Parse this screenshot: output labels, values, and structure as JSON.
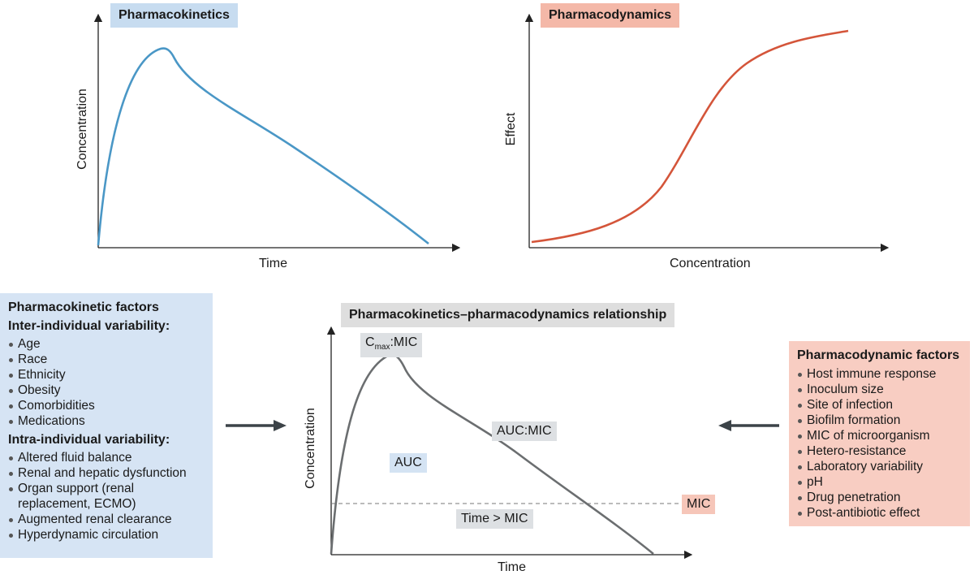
{
  "pk_chart": {
    "title": "Pharmacokinetics",
    "xlabel": "Time",
    "ylabel": "Concentration",
    "line_color": "#4a97c6"
  },
  "pd_chart": {
    "title": "Pharmacodynamics",
    "xlabel": "Concentration",
    "ylabel": "Effect",
    "line_color": "#d4553a"
  },
  "pkpd_chart": {
    "title": "Pharmacokinetics–pharmacodynamics relationship",
    "xlabel": "Time",
    "ylabel": "Concentration",
    "line_color": "#6b6e70",
    "cmax_main": "C",
    "cmax_sub": "max",
    "cmax_suffix": ":MIC",
    "auc_mic": "AUC:MIC",
    "auc": "AUC",
    "time_mic": "Time > MIC",
    "mic": "MIC"
  },
  "pk_factors": {
    "title": "Pharmacokinetic factors",
    "inter_title": "Inter-individual variability:",
    "inter_items": [
      "Age",
      "Race",
      "Ethnicity",
      "Obesity",
      "Comorbidities",
      "Medications"
    ],
    "intra_title": "Intra-individual variability:",
    "intra_items": [
      "Altered fluid balance",
      "Renal and hepatic dysfunction",
      "Organ support (renal replacement, ECMO)",
      "Augmented renal clearance",
      "Hyperdynamic circulation"
    ],
    "bg_color": "#d6e4f4"
  },
  "pd_factors": {
    "title": "Pharmacodynamic factors",
    "items": [
      "Host immune response",
      "Inoculum size",
      "Site of infection",
      "Biofilm formation",
      "MIC of microorganism",
      "Hetero-resistance",
      "Laboratory variability",
      "pH",
      "Drug penetration",
      "Post-antibiotic effect"
    ],
    "bg_color": "#f8cdc2"
  }
}
